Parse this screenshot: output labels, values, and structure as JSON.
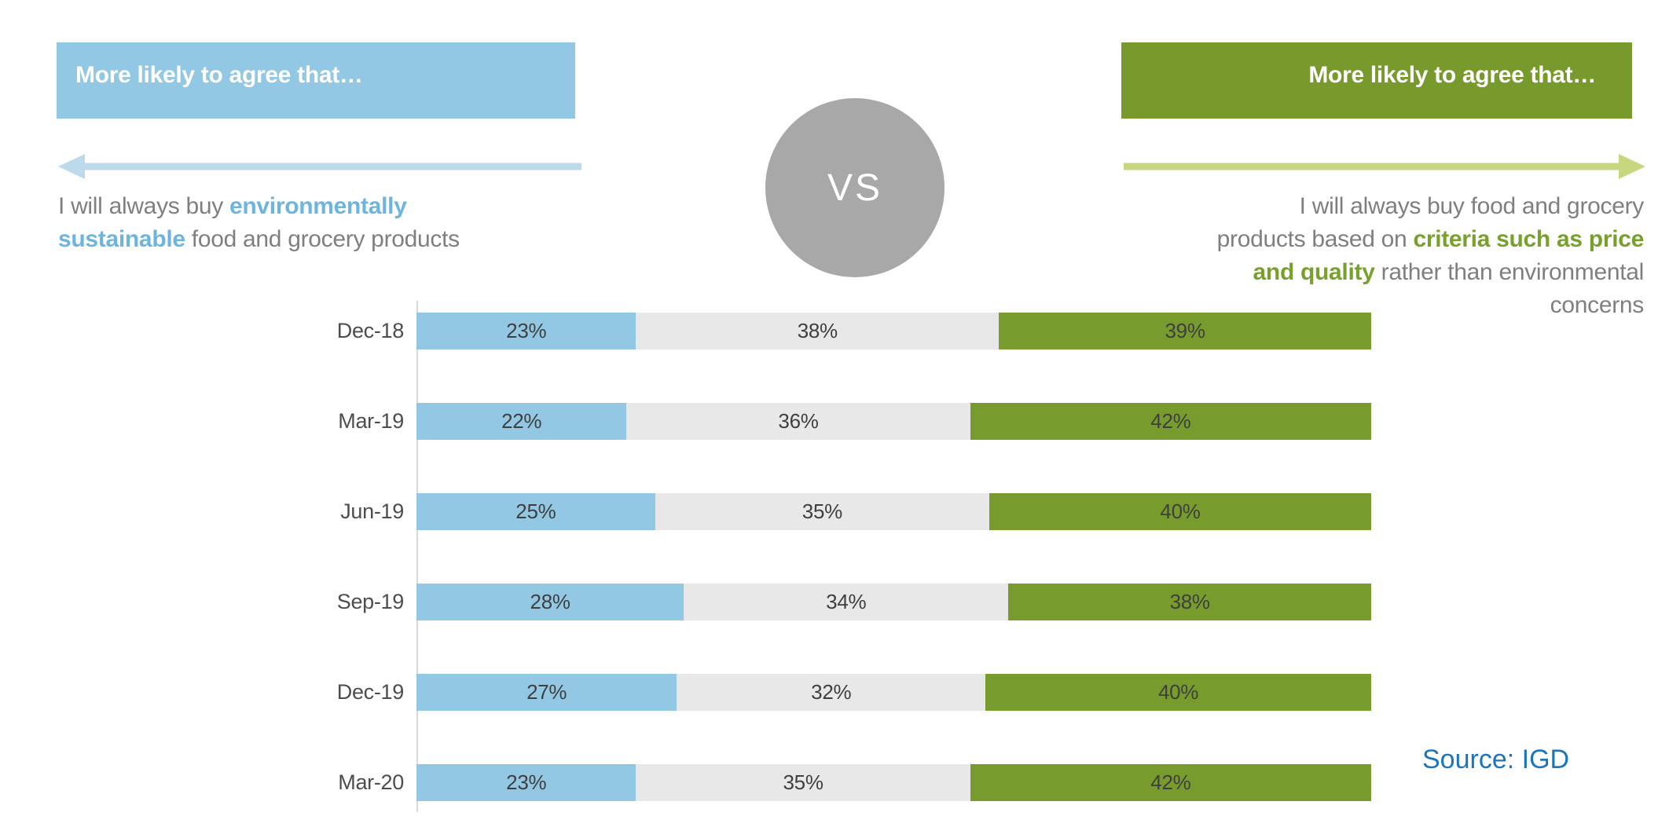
{
  "vs_label": "VS",
  "left_panel": {
    "header": "More likely to agree that…",
    "statement": {
      "line1_normal": "I will always buy ",
      "line1_highlight": "environmentally",
      "line2_highlight": "sustainable",
      "line2_normal": " food and grocery products"
    }
  },
  "right_panel": {
    "header": "More likely to agree that…",
    "statement": {
      "line1": "I will always buy food and grocery",
      "line2_normal": "products based on ",
      "line2_highlight": "criteria such as price",
      "line3_highlight": "and quality",
      "line3_normal": " rather than environmental",
      "line4": "concerns"
    }
  },
  "source": {
    "text": "Source: IGD"
  },
  "colors": {
    "header_blue": "#92C8E3",
    "header_green": "#78992C",
    "arrow_blue": "#BCDAEC",
    "arrow_green": "#C6D77F",
    "vs_grey": "#A8A8A8",
    "highlight_blue": "#6DB5DE",
    "highlight_green": "#78A02D",
    "body_grey": "#7F7F7F",
    "value_text": "#3F3F3F",
    "source_blue": "#1C75BC"
  },
  "chart_data": {
    "type": "bar",
    "orientation": "horizontal-stacked",
    "title": "",
    "xlabel": "",
    "ylabel": "",
    "xlim": [
      0,
      100
    ],
    "value_format": "percent",
    "grid": false,
    "legend": "none",
    "categories": [
      "Dec-18",
      "Mar-19",
      "Jun-19",
      "Sep-19",
      "Dec-19",
      "Mar-20"
    ],
    "series": [
      {
        "name": "blue-environmentally-sustainable",
        "color": "#92C8E3",
        "values": [
          23,
          22,
          25,
          28,
          27,
          23
        ]
      },
      {
        "name": "grey-neutral-middle",
        "color": "#E8E8E8",
        "values": [
          38,
          36,
          35,
          34,
          32,
          35
        ]
      },
      {
        "name": "green-price-and-quality",
        "color": "#789B2D",
        "values": [
          39,
          42,
          40,
          38,
          40,
          42
        ]
      }
    ]
  }
}
